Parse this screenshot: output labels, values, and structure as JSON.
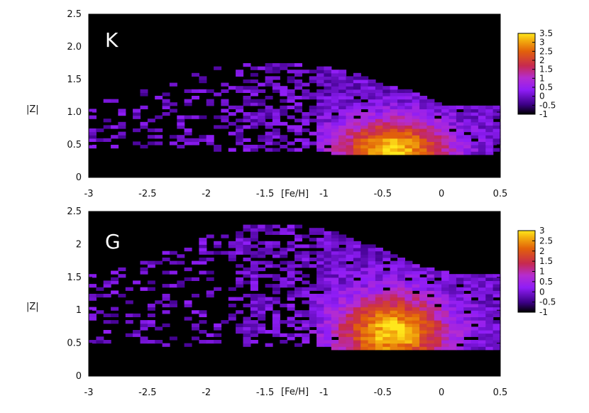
{
  "chart_data": [
    {
      "type": "heatmap",
      "panel_label": "K",
      "xlabel": "[Fe/H]",
      "ylabel": "|Z|",
      "xlim": [
        -3,
        0.5
      ],
      "ylim": [
        0,
        2.5
      ],
      "x_ticks": [
        "-3",
        "-2.5",
        "-2",
        "-1.5",
        "-1",
        "-0.5",
        "0",
        "0.5"
      ],
      "y_ticks": [
        "0",
        "0.5",
        "1.0",
        "1.5",
        "2.0",
        "2.5"
      ],
      "colorbar": {
        "range": [
          -1,
          3.5
        ],
        "ticks": [
          "3.5",
          "3",
          "2.5",
          "2",
          "1.5",
          "1",
          "0.5",
          "0",
          "-0.5",
          "-1"
        ]
      },
      "density_peak": {
        "feh": -0.45,
        "z": 0.4
      },
      "extent": {
        "feh": [
          -3,
          0.45
        ],
        "z": [
          0.3,
          1.75
        ]
      },
      "background": "#000000"
    },
    {
      "type": "heatmap",
      "panel_label": "G",
      "xlabel": "[Fe/H]",
      "ylabel": "|Z|",
      "xlim": [
        -3,
        0.5
      ],
      "ylim": [
        0,
        2.5
      ],
      "x_ticks": [
        "-3",
        "-2.5",
        "-2",
        "-1.5",
        "-1",
        "-0.5",
        "0",
        "0.5"
      ],
      "y_ticks": [
        "0",
        "0.5",
        "1",
        "1.5",
        "2",
        "2.5"
      ],
      "colorbar": {
        "range": [
          -1,
          3
        ],
        "ticks": [
          "3",
          "2.5",
          "2",
          "1.5",
          "1",
          "0.5",
          "0",
          "-0.5",
          "-1"
        ]
      },
      "density_peak": {
        "feh": -0.45,
        "z": 0.65
      },
      "extent": {
        "feh": [
          -3,
          0.45
        ],
        "z": [
          0.35,
          2.3
        ]
      },
      "background": "#000000"
    }
  ]
}
